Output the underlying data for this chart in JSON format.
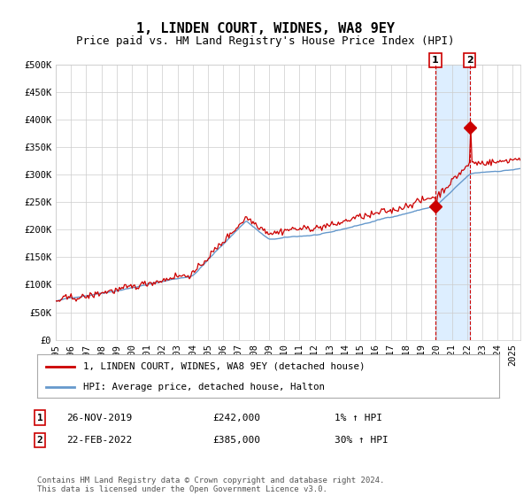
{
  "title": "1, LINDEN COURT, WIDNES, WA8 9EY",
  "subtitle": "Price paid vs. HM Land Registry's House Price Index (HPI)",
  "ylabel_ticks": [
    "£0",
    "£50K",
    "£100K",
    "£150K",
    "£200K",
    "£250K",
    "£300K",
    "£350K",
    "£400K",
    "£450K",
    "£500K"
  ],
  "ytick_values": [
    0,
    50000,
    100000,
    150000,
    200000,
    250000,
    300000,
    350000,
    400000,
    450000,
    500000
  ],
  "ylim": [
    0,
    500000
  ],
  "xlim_start": 1995.0,
  "xlim_end": 2025.5,
  "xticks": [
    1995,
    1996,
    1997,
    1998,
    1999,
    2000,
    2001,
    2002,
    2003,
    2004,
    2005,
    2006,
    2007,
    2008,
    2009,
    2010,
    2011,
    2012,
    2013,
    2014,
    2015,
    2016,
    2017,
    2018,
    2019,
    2020,
    2021,
    2022,
    2023,
    2024,
    2025
  ],
  "hpi_color": "#6699cc",
  "price_color": "#cc0000",
  "marker_color": "#cc0000",
  "vline_color": "#cc0000",
  "shade_color": "#ddeeff",
  "date1_x": 2019.9167,
  "date1_y": 242000,
  "date2_x": 2022.1667,
  "date2_y": 385000,
  "legend_line1": "1, LINDEN COURT, WIDNES, WA8 9EY (detached house)",
  "legend_line2": "HPI: Average price, detached house, Halton",
  "table_rows": [
    {
      "num": "1",
      "date": "26-NOV-2019",
      "price": "£242,000",
      "hpi": "1% ↑ HPI"
    },
    {
      "num": "2",
      "date": "22-FEB-2022",
      "price": "£385,000",
      "hpi": "30% ↑ HPI"
    }
  ],
  "footer": "Contains HM Land Registry data © Crown copyright and database right 2024.\nThis data is licensed under the Open Government Licence v3.0.",
  "background_color": "#ffffff",
  "plot_bg_color": "#ffffff",
  "grid_color": "#cccccc",
  "title_fontsize": 11,
  "subtitle_fontsize": 9,
  "tick_fontsize": 7.5,
  "legend_fontsize": 8
}
